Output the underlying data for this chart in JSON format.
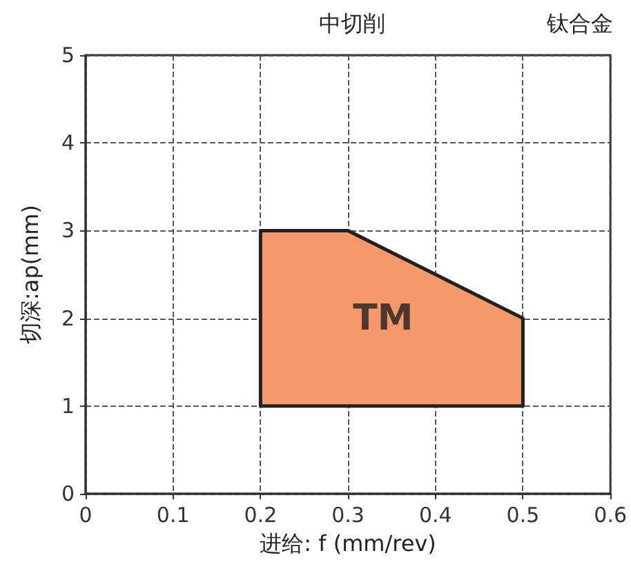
{
  "chart_data": {
    "type": "area",
    "title": "中切削",
    "subtitle": "钛合金",
    "xlabel": "进给: f (mm/rev)",
    "ylabel": "切深:ap(mm)",
    "x": [
      0.2,
      0.2,
      0.3,
      0.5,
      0.5,
      0.2
    ],
    "series": [
      {
        "color": "#f5996a",
        "values": [
          1,
          3,
          3,
          2,
          1,
          1
        ]
      }
    ],
    "annotations": [
      "TM"
    ],
    "xlim": [
      0,
      0.6
    ],
    "xticks": [
      0,
      0.1,
      0.2,
      0.3,
      0.4,
      0.5,
      0.6
    ],
    "ylim": [
      0,
      5
    ],
    "yticks": [
      0,
      1,
      2,
      3,
      4,
      5
    ],
    "grid": true,
    "line_style": "solid"
  }
}
